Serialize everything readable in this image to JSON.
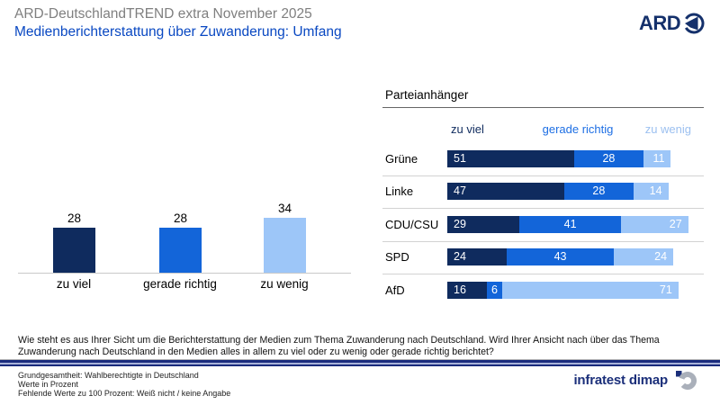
{
  "header": {
    "suptitle": "ARD-DeutschlandTREND extra November 2025",
    "title": "Medienberichterstattung über Zuwanderung: Umfang",
    "ard_logo_text": "ARD"
  },
  "colors": {
    "zu_viel_dark_navy": "#0f2b5e",
    "gerade_richtig_blue": "#1365d9",
    "zu_wenig_light_blue": "#9dc6f8",
    "title_blue": "#0948c2",
    "suptitle_gray": "#7f7f7f",
    "divider_navy": "#1a2b7d",
    "brand_navy": "#1b2f7a"
  },
  "chart_data": [
    {
      "type": "bar",
      "categories": [
        "zu viel",
        "gerade richtig",
        "zu wenig"
      ],
      "values": [
        28,
        28,
        34
      ],
      "unit": "Prozent",
      "value_labels": true,
      "ylim": [
        0,
        40
      ],
      "grid": false,
      "colors": [
        "#0f2b5e",
        "#1365d9",
        "#9dc6f8"
      ]
    },
    {
      "type": "stacked_bar_horizontal",
      "title": "Parteianhänger",
      "column_headers": [
        "zu viel",
        "gerade richtig",
        "zu wenig"
      ],
      "categories": [
        "Grüne",
        "Linke",
        "CDU/CSU",
        "SPD",
        "AfD"
      ],
      "rows": [
        {
          "label": "Grüne",
          "values": [
            51,
            28,
            11
          ]
        },
        {
          "label": "Linke",
          "values": [
            47,
            28,
            14
          ]
        },
        {
          "label": "CDU/CSU",
          "values": [
            29,
            41,
            27
          ]
        },
        {
          "label": "SPD",
          "values": [
            24,
            43,
            24
          ]
        },
        {
          "label": "AfD",
          "values": [
            16,
            6,
            71
          ]
        }
      ],
      "series": [
        {
          "name": "zu viel",
          "values": [
            51,
            47,
            29,
            24,
            16
          ]
        },
        {
          "name": "gerade richtig",
          "values": [
            28,
            28,
            41,
            43,
            6
          ]
        },
        {
          "name": "zu wenig",
          "values": [
            11,
            14,
            27,
            24,
            71
          ]
        }
      ],
      "xmax": 100,
      "unit": "Prozent"
    }
  ],
  "question": "Wie steht es aus Ihrer Sicht um die Berichterstattung der Medien zum Thema Zuwanderung nach Deutschland. Wird Ihrer Ansicht nach über das Thema Zuwanderung nach Deutschland in den Medien alles in allem zu viel oder zu wenig oder gerade richtig berichtet?",
  "footer": {
    "lines": [
      "Grundgesamtheit: Wahlberechtigte in Deutschland",
      "Werte in Prozent",
      "Fehlende Werte zu 100 Prozent: Weiß nicht / keine Angabe"
    ],
    "brand": "infratest dimap"
  }
}
